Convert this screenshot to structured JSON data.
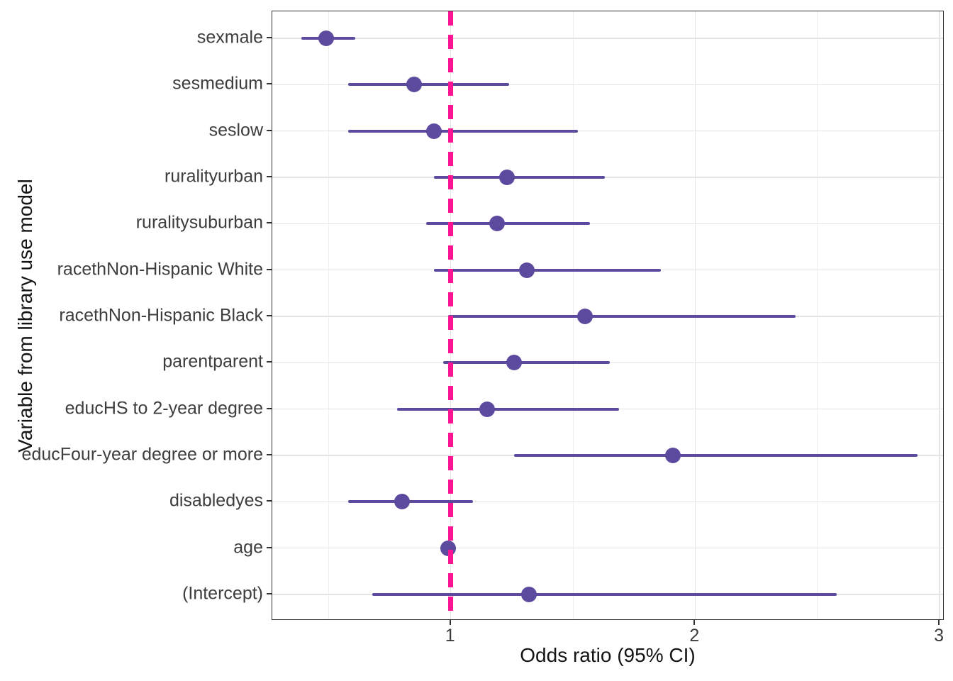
{
  "chart_data": {
    "type": "scatter",
    "subtype": "forest-plot-dot-whisker",
    "title": "",
    "xlabel": "Odds ratio (95% CI)",
    "ylabel": "Variable from library use model",
    "xlim": [
      0.27,
      3.02
    ],
    "x_major_ticks": [
      1,
      2,
      3
    ],
    "x_tick_labels": [
      "1",
      "2",
      "3"
    ],
    "x_minor_gridlines": [
      0.5,
      1.5,
      2.5
    ],
    "grid": true,
    "legend_position": "none",
    "reference_line": {
      "x": 1,
      "style": "dashed",
      "color": "#FF1493"
    },
    "point_color": "#5C4A9E",
    "ci_color": "#5C4A9E",
    "categories": [
      "sexmale",
      "sesmedium",
      "seslow",
      "ruralityurban",
      "ruralitysuburban",
      "racethNon-Hispanic White",
      "racethNon-Hispanic Black",
      "parentparent",
      "educHS to 2-year degree",
      "educFour-year degree or more",
      "disabledyes",
      "age",
      "(Intercept)"
    ],
    "rows": [
      {
        "label": "sexmale",
        "odds_ratio": 0.49,
        "ci_low": 0.39,
        "ci_high": 0.61
      },
      {
        "label": "sesmedium",
        "odds_ratio": 0.85,
        "ci_low": 0.58,
        "ci_high": 1.24
      },
      {
        "label": "seslow",
        "odds_ratio": 0.93,
        "ci_low": 0.58,
        "ci_high": 1.52
      },
      {
        "label": "ruralityurban",
        "odds_ratio": 1.23,
        "ci_low": 0.93,
        "ci_high": 1.63
      },
      {
        "label": "ruralitysuburban",
        "odds_ratio": 1.19,
        "ci_low": 0.9,
        "ci_high": 1.57
      },
      {
        "label": "racethNon-Hispanic White",
        "odds_ratio": 1.31,
        "ci_low": 0.93,
        "ci_high": 1.86
      },
      {
        "label": "racethNon-Hispanic Black",
        "odds_ratio": 1.55,
        "ci_low": 0.99,
        "ci_high": 2.41
      },
      {
        "label": "parentparent",
        "odds_ratio": 1.26,
        "ci_low": 0.97,
        "ci_high": 1.65
      },
      {
        "label": "educHS to 2-year degree",
        "odds_ratio": 1.15,
        "ci_low": 0.78,
        "ci_high": 1.69
      },
      {
        "label": "educFour-year degree or more",
        "odds_ratio": 1.91,
        "ci_low": 1.26,
        "ci_high": 2.91
      },
      {
        "label": "disabledyes",
        "odds_ratio": 0.8,
        "ci_low": 0.58,
        "ci_high": 1.09
      },
      {
        "label": "age",
        "odds_ratio": 0.99,
        "ci_low": 0.98,
        "ci_high": 1.0
      },
      {
        "label": "(Intercept)",
        "odds_ratio": 1.32,
        "ci_low": 0.68,
        "ci_high": 2.58
      }
    ]
  },
  "style_colors": {
    "grid_major": "#e4e4e4",
    "grid_minor": "#efefef",
    "panel_border": "#2e2e2e",
    "axis_text": "#3d3d3d",
    "axis_title": "#141414"
  }
}
